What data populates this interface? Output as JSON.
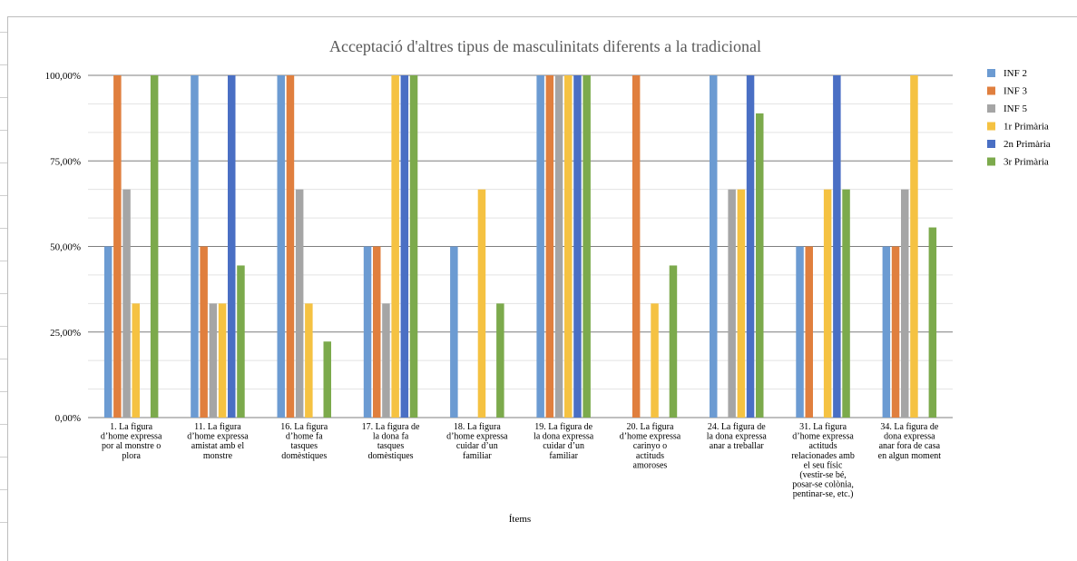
{
  "chart_data": {
    "type": "bar",
    "title": "Acceptació d'altres tipus de masculinitats diferents a la tradicional",
    "xlabel": "Ítems",
    "ylabel": "",
    "ylim": [
      0,
      100
    ],
    "yticks": [
      "0,00%",
      "25,00%",
      "50,00%",
      "75,00%",
      "100,00%"
    ],
    "grid": true,
    "legend_position": "right",
    "categories": [
      [
        "1. La figura",
        "d’home expressa",
        "por al monstre o",
        "plora"
      ],
      [
        "11. La figura",
        "d’home expressa",
        "amistat amb el",
        "monstre"
      ],
      [
        "16. La figura",
        "d’home fa",
        "tasques",
        "domèstiques"
      ],
      [
        "17. La figura de",
        "la dona fa",
        "tasques",
        "domèstiques"
      ],
      [
        "18. La figura",
        "d’home expressa",
        "cuidar d’un",
        "familiar"
      ],
      [
        "19. La figura de",
        "la dona expressa",
        "cuidar d’un",
        "familiar"
      ],
      [
        "20. La figura",
        "d’home expressa",
        "carinyo o",
        "actituds",
        "amoroses"
      ],
      [
        "24. La figura de",
        "la dona expressa",
        "anar a treballar"
      ],
      [
        "31. La figura",
        "d’home expressa",
        "actituds",
        "relacionades amb",
        "el seu físic",
        "(vestir-se bé,",
        "posar-se colònia,",
        "pentinar-se, etc.)"
      ],
      [
        "34. La figura de",
        "dona expressa",
        "anar fora de casa",
        "en algun moment"
      ]
    ],
    "series": [
      {
        "name": "INF 2",
        "color": "#6c9bd2",
        "values": [
          50,
          100,
          100,
          50,
          50,
          100,
          0,
          100,
          50,
          50
        ]
      },
      {
        "name": "INF 3",
        "color": "#e07f3e",
        "values": [
          100,
          50,
          100,
          50,
          0,
          100,
          100,
          0,
          50,
          50
        ]
      },
      {
        "name": "INF 5",
        "color": "#a5a5a5",
        "values": [
          66.67,
          33.33,
          66.67,
          33.33,
          0,
          100,
          0,
          66.67,
          0,
          66.67
        ]
      },
      {
        "name": "1r Primària",
        "color": "#f5c242",
        "values": [
          33.33,
          33.33,
          33.33,
          100,
          66.67,
          100,
          33.33,
          66.67,
          66.67,
          100
        ]
      },
      {
        "name": "2n Primària",
        "color": "#4a6fc4",
        "values": [
          0,
          100,
          0,
          100,
          0,
          100,
          0,
          100,
          100,
          0
        ]
      },
      {
        "name": "3r Primària",
        "color": "#7caa4c",
        "values": [
          100,
          44.44,
          22.22,
          100,
          33.33,
          100,
          44.44,
          88.89,
          66.67,
          55.56
        ]
      }
    ]
  }
}
